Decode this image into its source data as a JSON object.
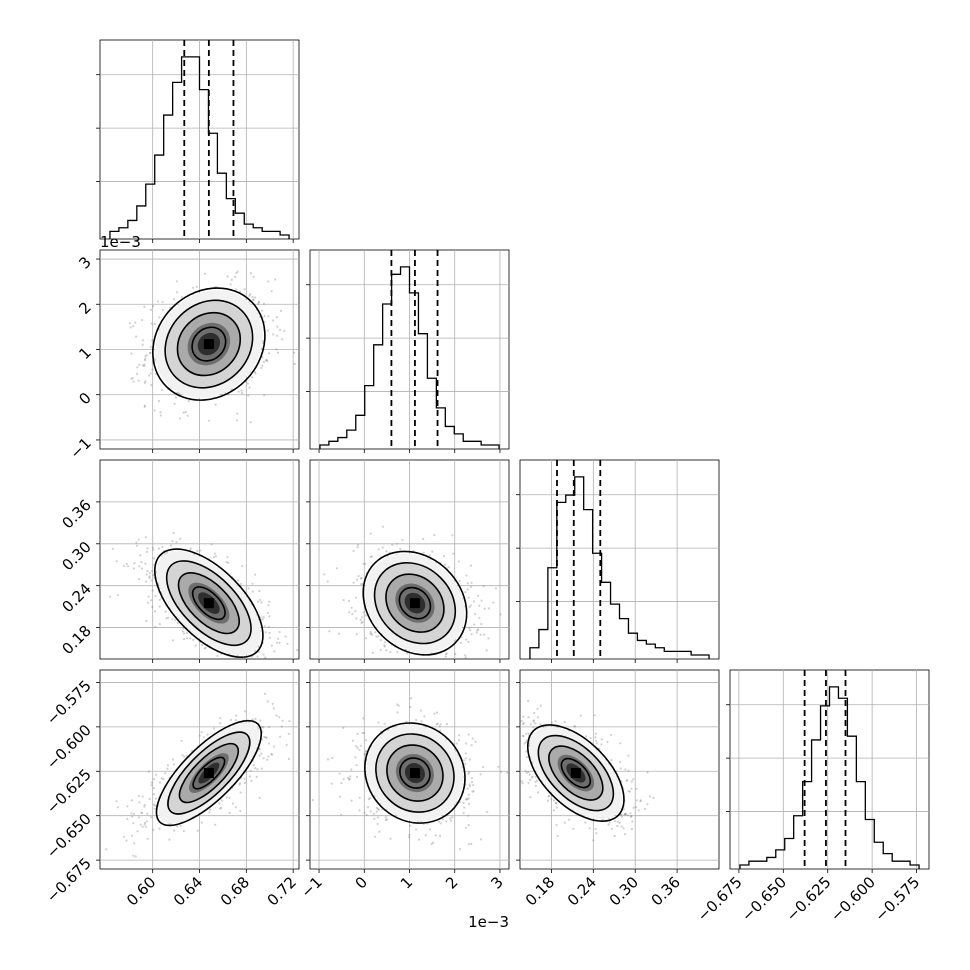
{
  "chart_data": {
    "type": "corner",
    "grid": true,
    "quantile_lines": [
      0.16,
      0.5,
      0.84
    ],
    "parameters": [
      {
        "range": [
          0.555,
          0.725
        ],
        "ticks": [
          0.6,
          0.64,
          0.68,
          0.72
        ],
        "tick_labels": [
          "0.60",
          "0.64",
          "0.68",
          "0.72"
        ],
        "offset_text": "",
        "quantiles": [
          0.627,
          0.648,
          0.669
        ],
        "mean": 0.648,
        "sd": 0.021
      },
      {
        "range": [
          -1.2,
          3.2
        ],
        "ticks": [
          -1,
          0,
          1,
          2,
          3
        ],
        "tick_labels": [
          "−1",
          "0",
          "1",
          "2",
          "3"
        ],
        "offset_text": "1e−3",
        "quantiles": [
          0.6,
          1.12,
          1.62
        ],
        "mean": 1.12,
        "sd": 0.5
      },
      {
        "range": [
          0.135,
          0.42
        ],
        "ticks": [
          0.18,
          0.24,
          0.3,
          0.36
        ],
        "tick_labels": [
          "0.18",
          "0.24",
          "0.30",
          "0.36"
        ],
        "offset_text": "",
        "quantiles": [
          0.188,
          0.212,
          0.25
        ],
        "mean": 0.215,
        "sd": 0.03
      },
      {
        "range": [
          -0.68,
          -0.568
        ],
        "ticks": [
          -0.675,
          -0.65,
          -0.625,
          -0.6,
          -0.575
        ],
        "tick_labels": [
          "−0.675",
          "−0.650",
          "−0.625",
          "−0.600",
          "−0.575"
        ],
        "offset_text": "",
        "quantiles": [
          -0.638,
          -0.626,
          -0.615
        ],
        "mean": -0.626,
        "sd": 0.011
      }
    ],
    "marginal_histograms": [
      {
        "bins": 20,
        "counts": [
          1,
          2,
          4,
          8,
          14,
          22,
          33,
          42,
          49,
          49,
          40,
          28,
          17,
          10,
          6,
          3,
          2,
          1,
          1,
          0
        ]
      },
      {
        "bins": 20,
        "counts": [
          0,
          1,
          2,
          4,
          8,
          16,
          27,
          38,
          46,
          48,
          41,
          30,
          18,
          10,
          5,
          3,
          1,
          1,
          0,
          0
        ]
      },
      {
        "bins": 20,
        "counts": [
          2,
          7,
          24,
          42,
          44,
          49,
          40,
          28,
          20,
          14,
          10,
          6,
          4,
          3,
          2,
          1,
          1,
          1,
          0,
          0
        ]
      },
      {
        "bins": 20,
        "counts": [
          0,
          1,
          1,
          2,
          4,
          7,
          13,
          22,
          33,
          42,
          47,
          44,
          34,
          22,
          12,
          6,
          3,
          1,
          1,
          0
        ]
      }
    ],
    "correlations": [
      {
        "pair": [
          1,
          0
        ],
        "rho": 0.15
      },
      {
        "pair": [
          2,
          0
        ],
        "rho": -0.6
      },
      {
        "pair": [
          2,
          1
        ],
        "rho": -0.2
      },
      {
        "pair": [
          3,
          0
        ],
        "rho": 0.75
      },
      {
        "pair": [
          3,
          1
        ],
        "rho": -0.1
      },
      {
        "pair": [
          3,
          2
        ],
        "rho": -0.55
      }
    ]
  }
}
